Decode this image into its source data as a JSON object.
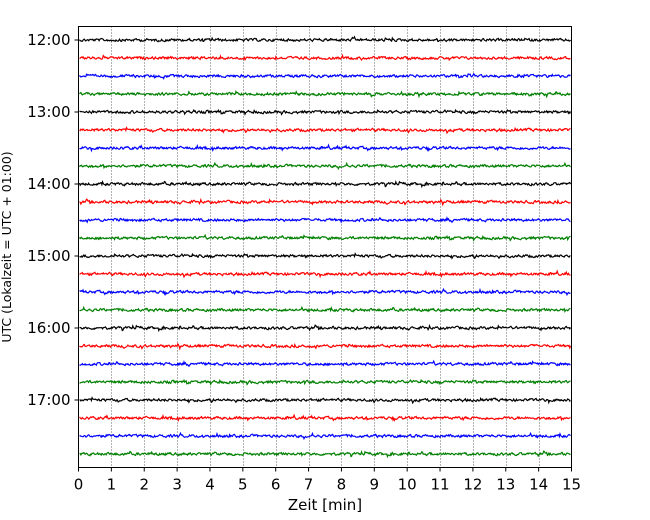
{
  "chart_data": {
    "type": "line",
    "title": "",
    "xlabel": "Zeit  [min]",
    "ylabel": "UTC (Lokalzeit = UTC + 01:00)",
    "xlim": [
      0,
      15
    ],
    "x_ticks": [
      "0",
      "1",
      "2",
      "3",
      "4",
      "5",
      "6",
      "7",
      "8",
      "9",
      "10",
      "11",
      "12",
      "13",
      "14",
      "15"
    ],
    "y_ticks": [
      "12:00",
      "13:00",
      "14:00",
      "15:00",
      "16:00",
      "17:00"
    ],
    "grid": "vertical dotted lines at each minute",
    "trace_interval_minutes": 15,
    "trace_start": "12:00",
    "trace_count": 24,
    "trace_colors": [
      "#000000",
      "#ff0000",
      "#0000ff",
      "#008000"
    ],
    "traces": [
      {
        "start": "12:00"
      },
      {
        "start": "12:15"
      },
      {
        "start": "12:30"
      },
      {
        "start": "12:45"
      },
      {
        "start": "13:00"
      },
      {
        "start": "13:15"
      },
      {
        "start": "13:30"
      },
      {
        "start": "13:45"
      },
      {
        "start": "14:00"
      },
      {
        "start": "14:15"
      },
      {
        "start": "14:30"
      },
      {
        "start": "14:45"
      },
      {
        "start": "15:00"
      },
      {
        "start": "15:15"
      },
      {
        "start": "15:30"
      },
      {
        "start": "15:45"
      },
      {
        "start": "16:00"
      },
      {
        "start": "16:15"
      },
      {
        "start": "16:30"
      },
      {
        "start": "16:45"
      },
      {
        "start": "17:00"
      },
      {
        "start": "17:15"
      },
      {
        "start": "17:30"
      },
      {
        "start": "17:45"
      }
    ]
  }
}
